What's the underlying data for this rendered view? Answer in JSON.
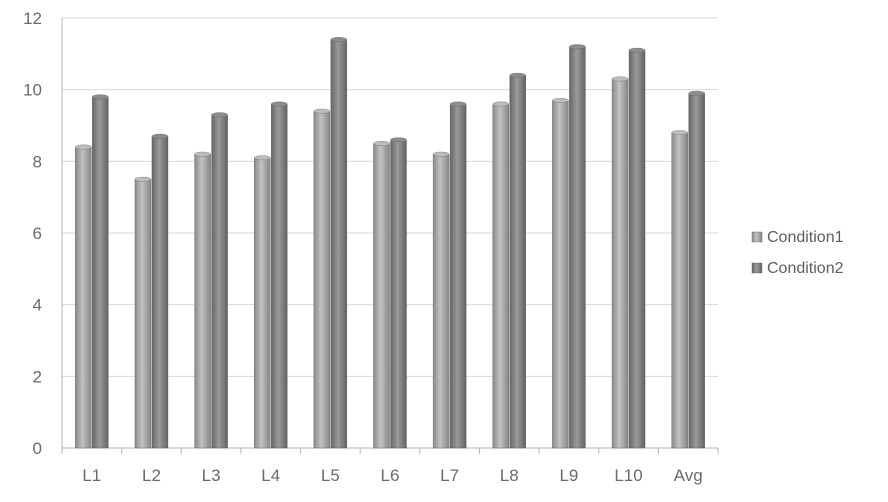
{
  "chart_data": {
    "type": "bar",
    "categories": [
      "L1",
      "L2",
      "L3",
      "L4",
      "L5",
      "L6",
      "L7",
      "L8",
      "L9",
      "L10",
      "Avg"
    ],
    "series": [
      {
        "name": "Condition1",
        "values": [
          8.4,
          7.5,
          8.2,
          8.1,
          9.4,
          8.5,
          8.2,
          9.6,
          9.7,
          10.3,
          8.8
        ],
        "color": "#9a9a9a"
      },
      {
        "name": "Condition2",
        "values": [
          9.8,
          8.7,
          9.3,
          9.6,
          11.4,
          8.6,
          9.6,
          10.4,
          11.2,
          11.1,
          9.9
        ],
        "color": "#7a7a7a"
      }
    ],
    "yticks": [
      "0",
      "2",
      "4",
      "6",
      "8",
      "10",
      "12"
    ],
    "ylim": [
      0,
      12
    ],
    "grid": "horizontal",
    "legend_position": "right"
  }
}
